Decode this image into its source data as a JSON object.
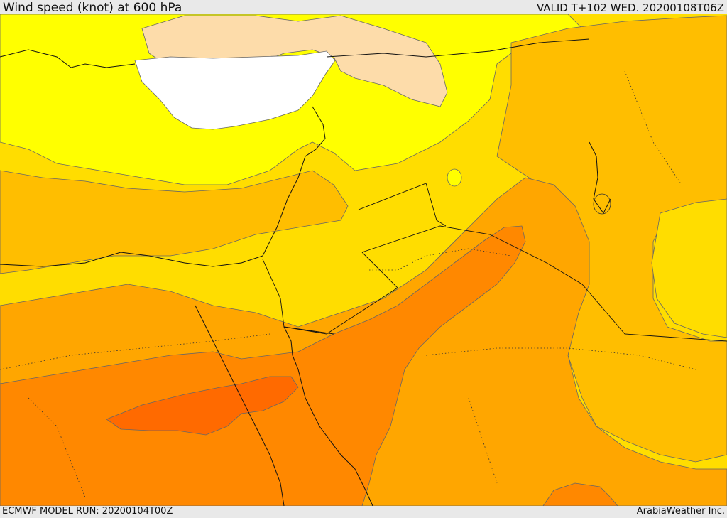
{
  "header": {
    "title": "Wind speed (knot) at 600 hPa",
    "valid_time": "VALID T+102 WED. 20200108T06Z"
  },
  "footer": {
    "model_run": "ECMWF MODEL RUN: 20200104T00Z",
    "credit": "ArabiaWeather Inc."
  },
  "legend_colors": {
    "calm": "#ffffff",
    "light": "#fce0a8",
    "yellow": "#ffff00",
    "gold": "#ffdd00",
    "amber": "#ffbe00",
    "orange_light": "#ffa600",
    "orange": "#ff8800",
    "orange_dark": "#ff6a00"
  }
}
